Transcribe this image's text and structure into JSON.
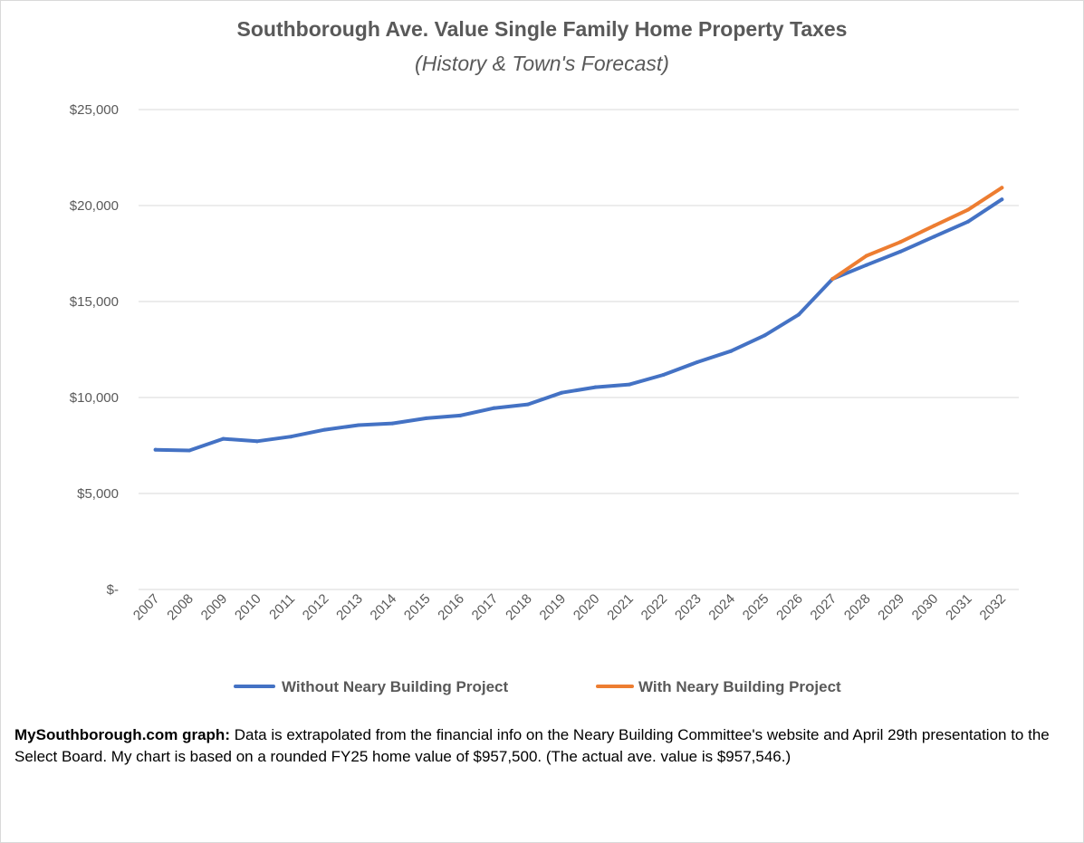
{
  "chart_data": {
    "type": "line",
    "title": "Southborough Ave. Value Single Family Home Property Taxes",
    "subtitle": "(History & Town's Forecast)",
    "xlabel": "",
    "ylabel": "",
    "categories": [
      "2007",
      "2008",
      "2009",
      "2010",
      "2011",
      "2012",
      "2013",
      "2014",
      "2015",
      "2016",
      "2017",
      "2018",
      "2019",
      "2020",
      "2021",
      "2022",
      "2023",
      "2024",
      "2025",
      "2026",
      "2027",
      "2028",
      "2029",
      "2030",
      "2031",
      "2032"
    ],
    "ylim": [
      0,
      25000
    ],
    "yticks": [
      0,
      5000,
      10000,
      15000,
      20000,
      25000
    ],
    "ytick_labels": [
      "$-",
      "$5,000",
      "$10,000",
      "$15,000",
      "$20,000",
      "$25,000"
    ],
    "grid": true,
    "legend_position": "bottom",
    "series": [
      {
        "name": "Without Neary Building Project",
        "color": "#4472c4",
        "values": [
          7280,
          7240,
          7850,
          7720,
          7960,
          8320,
          8560,
          8650,
          8920,
          9060,
          9450,
          9640,
          10250,
          10540,
          10680,
          11180,
          11840,
          12420,
          13240,
          14320,
          16180,
          16900,
          17600,
          18380,
          19160,
          20320
        ]
      },
      {
        "name": "With Neary Building Project",
        "color": "#ed7d31",
        "values": [
          null,
          null,
          null,
          null,
          null,
          null,
          null,
          null,
          null,
          null,
          null,
          null,
          null,
          null,
          null,
          null,
          null,
          null,
          null,
          null,
          16180,
          17380,
          18100,
          18950,
          19780,
          20930
        ]
      }
    ]
  },
  "note": {
    "bold": "MySouthborough.com graph:",
    "text": " Data is extrapolated from the financial info on the Neary Building Committee's website and April 29th presentation to the Select Board. My chart is based on a rounded FY25 home value of $957,500. (The actual ave. value is $957,546.)"
  }
}
